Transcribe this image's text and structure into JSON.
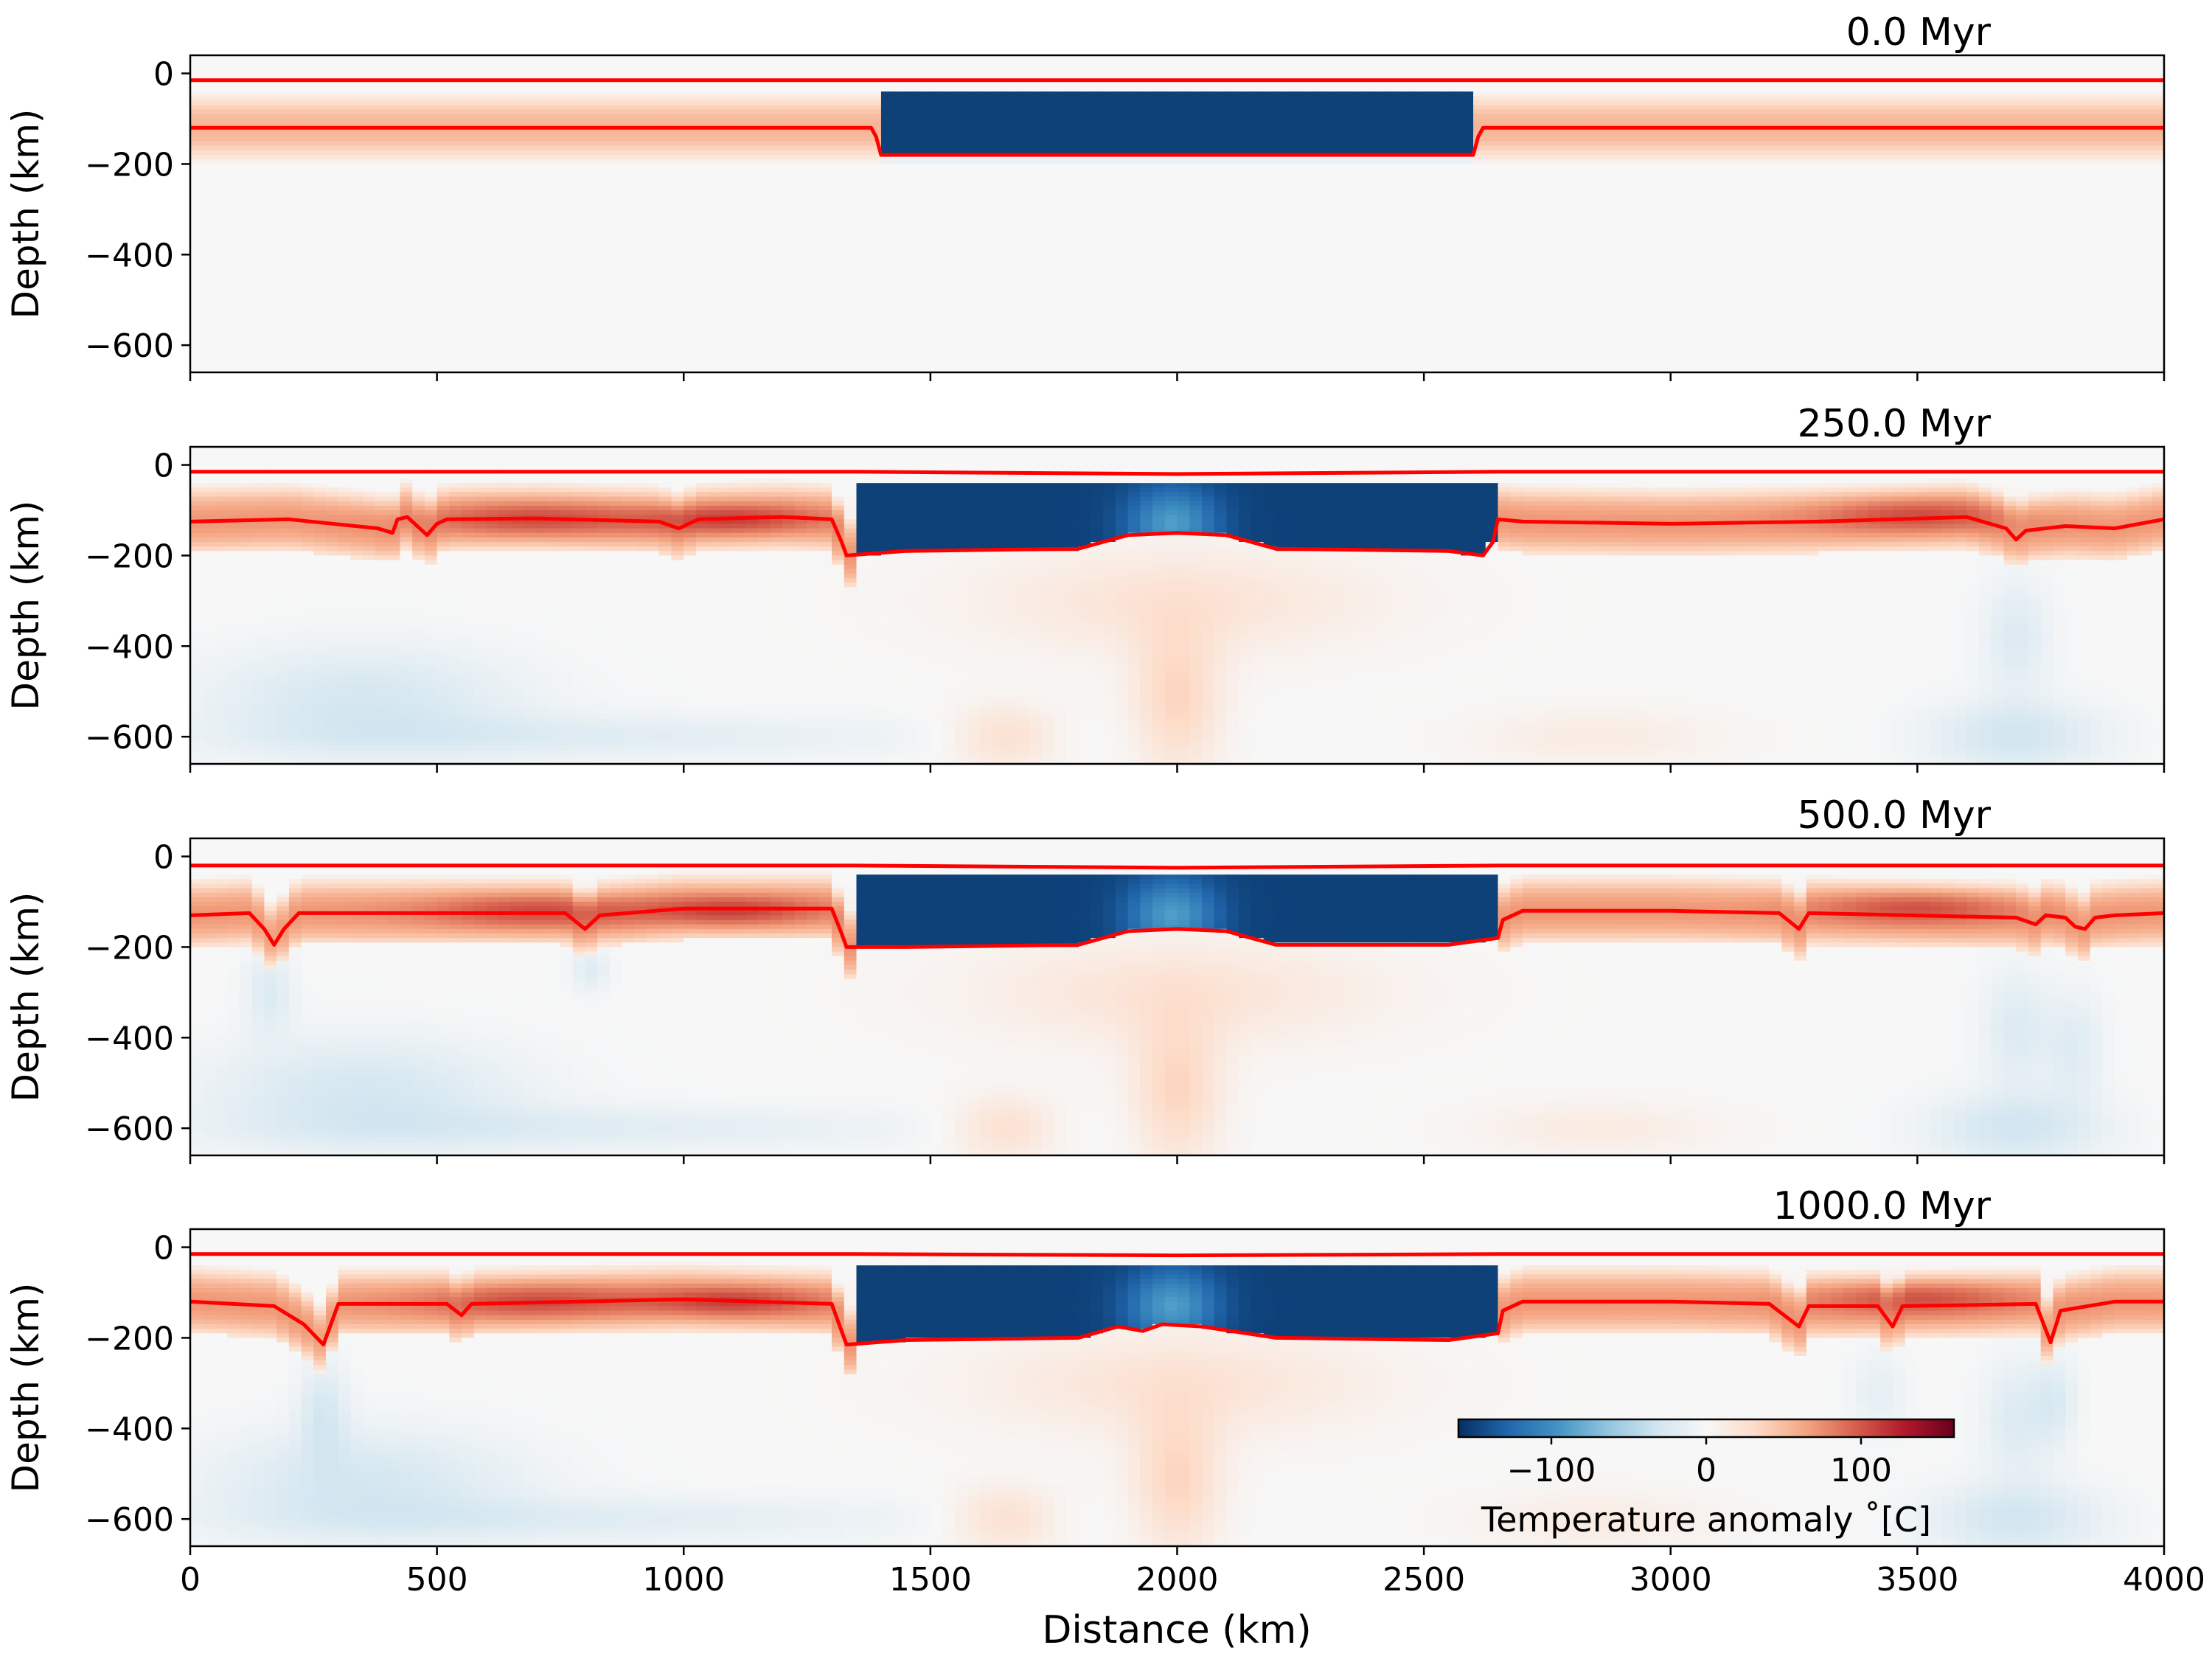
{
  "figure": {
    "xlabel": "Distance (km)",
    "ylabel": "Depth (km)",
    "xticks": [
      0,
      500,
      1000,
      1500,
      2000,
      2500,
      3000,
      3500,
      4000
    ],
    "yticks": [
      0,
      -200,
      -400,
      -600
    ],
    "ytick_labels": [
      "0",
      "−200",
      "−400",
      "−600"
    ],
    "xlim": [
      0,
      4000
    ],
    "ylim": [
      -660,
      40
    ]
  },
  "colorbar": {
    "label": "Temperature anomaly ˚C]",
    "label_text": "Temperature anomaly ˚[C]",
    "ticks": [
      -100,
      0,
      100
    ],
    "tick_labels": [
      "−100",
      "0",
      "100"
    ],
    "range": [
      -160,
      160
    ],
    "colormap": "RdBu_r",
    "colors": [
      "#053061",
      "#2166ac",
      "#4393c3",
      "#92c5de",
      "#d1e5f0",
      "#f7f7f7",
      "#fddbc7",
      "#f4a582",
      "#d6604d",
      "#b2182b",
      "#67001f"
    ]
  },
  "chart_data": [
    {
      "type": "heatmap",
      "title": "0.0 Myr",
      "xlim": [
        0,
        4000
      ],
      "ylim": [
        -660,
        40
      ],
      "contours": [
        {
          "color": "#ff0000",
          "x": [
            0,
            4000
          ],
          "y": [
            -15,
            -15
          ]
        },
        {
          "color": "#ff0000",
          "x": [
            0,
            1380,
            1390,
            1400,
            2600,
            2610,
            2620,
            4000
          ],
          "y": [
            -120,
            -120,
            -140,
            -180,
            -180,
            -140,
            -120,
            -120
          ]
        }
      ]
    },
    {
      "type": "heatmap",
      "title": "250.0 Myr",
      "xlim": [
        0,
        4000
      ],
      "ylim": [
        -660,
        40
      ],
      "contours": [
        {
          "color": "#ff0000",
          "x": [
            0,
            1350,
            2000,
            2650,
            4000
          ],
          "y": [
            -15,
            -15,
            -20,
            -15,
            -15
          ]
        },
        {
          "color": "#ff0000",
          "x": [
            0,
            200,
            380,
            410,
            420,
            440,
            480,
            500,
            520,
            700,
            950,
            990,
            1030,
            1200,
            1300,
            1320,
            1330,
            1450,
            1800,
            1900,
            2000,
            2100,
            2200,
            2550,
            2620,
            2640,
            2650,
            2700,
            3000,
            3300,
            3600,
            3680,
            3700,
            3720,
            3800,
            3900,
            4000
          ],
          "y": [
            -125,
            -120,
            -140,
            -150,
            -120,
            -115,
            -155,
            -130,
            -120,
            -118,
            -125,
            -140,
            -120,
            -115,
            -120,
            -170,
            -200,
            -190,
            -185,
            -155,
            -150,
            -155,
            -185,
            -190,
            -200,
            -170,
            -120,
            -125,
            -130,
            -125,
            -115,
            -140,
            -165,
            -145,
            -135,
            -140,
            -120
          ]
        }
      ]
    },
    {
      "type": "heatmap",
      "title": "500.0 Myr",
      "xlim": [
        0,
        4000
      ],
      "ylim": [
        -660,
        40
      ],
      "contours": [
        {
          "color": "#ff0000",
          "x": [
            0,
            1350,
            2000,
            2650,
            4000
          ],
          "y": [
            -20,
            -20,
            -25,
            -20,
            -20
          ]
        },
        {
          "color": "#ff0000",
          "x": [
            0,
            120,
            150,
            170,
            190,
            220,
            760,
            800,
            830,
            1000,
            1300,
            1320,
            1330,
            1450,
            1800,
            1900,
            2000,
            2100,
            2200,
            2550,
            2650,
            2660,
            2700,
            3000,
            3220,
            3260,
            3280,
            3700,
            3740,
            3760,
            3800,
            3820,
            3840,
            3860,
            3900,
            4000
          ],
          "y": [
            -130,
            -125,
            -160,
            -195,
            -160,
            -125,
            -125,
            -160,
            -130,
            -115,
            -115,
            -170,
            -200,
            -200,
            -195,
            -165,
            -160,
            -165,
            -195,
            -195,
            -180,
            -140,
            -120,
            -120,
            -125,
            -160,
            -125,
            -135,
            -150,
            -130,
            -135,
            -155,
            -160,
            -135,
            -130,
            -125
          ]
        }
      ]
    },
    {
      "type": "heatmap",
      "title": "1000.0 Myr",
      "xlim": [
        0,
        4000
      ],
      "ylim": [
        -660,
        40
      ],
      "contours": [
        {
          "color": "#ff0000",
          "x": [
            0,
            1350,
            2000,
            2650,
            4000
          ],
          "y": [
            -15,
            -15,
            -18,
            -15,
            -15
          ]
        },
        {
          "color": "#ff0000",
          "x": [
            0,
            170,
            230,
            270,
            300,
            520,
            550,
            570,
            1000,
            1300,
            1320,
            1330,
            1450,
            1800,
            1880,
            1930,
            1970,
            2050,
            2200,
            2550,
            2650,
            2660,
            2700,
            3000,
            3200,
            3260,
            3280,
            3420,
            3450,
            3470,
            3740,
            3770,
            3790,
            3900,
            4000
          ],
          "y": [
            -120,
            -130,
            -170,
            -215,
            -125,
            -125,
            -150,
            -125,
            -115,
            -125,
            -185,
            -215,
            -205,
            -200,
            -175,
            -185,
            -170,
            -175,
            -200,
            -205,
            -190,
            -140,
            -120,
            -120,
            -125,
            -175,
            -130,
            -130,
            -175,
            -130,
            -125,
            -210,
            -140,
            -120,
            -120
          ]
        }
      ]
    }
  ]
}
